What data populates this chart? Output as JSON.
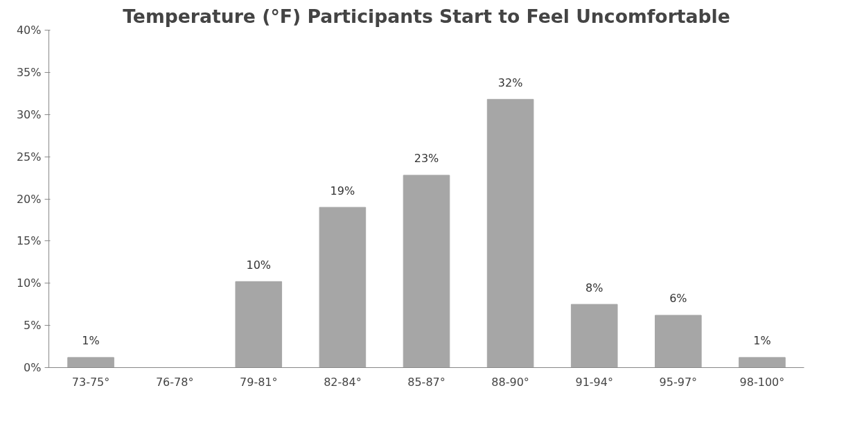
{
  "chart_data": {
    "type": "bar",
    "title": "Temperature (°F) Participants Start to Feel Uncomfortable",
    "categories": [
      "73-75°",
      "76-78°",
      "79-81°",
      "82-84°",
      "85-87°",
      "88-90°",
      "91-94°",
      "95-97°",
      "98-100°"
    ],
    "values": [
      1.2,
      0,
      10.2,
      19,
      22.8,
      31.8,
      7.5,
      6.2,
      1.2
    ],
    "value_labels": [
      "1%",
      null,
      "10%",
      "19%",
      "23%",
      "32%",
      "8%",
      "6%",
      "1%"
    ],
    "color": "#a6a6a6",
    "ylim": [
      0,
      40
    ],
    "yticks": [
      {
        "value": 0,
        "label": "0%"
      },
      {
        "value": 5,
        "label": "5%"
      },
      {
        "value": 10,
        "label": "10%"
      },
      {
        "value": 15,
        "label": "15%"
      },
      {
        "value": 20,
        "label": "20%"
      },
      {
        "value": 25,
        "label": "25%"
      },
      {
        "value": 30,
        "label": "30%"
      },
      {
        "value": 35,
        "label": "35%"
      },
      {
        "value": 40,
        "label": "40%"
      }
    ],
    "grid": false
  }
}
